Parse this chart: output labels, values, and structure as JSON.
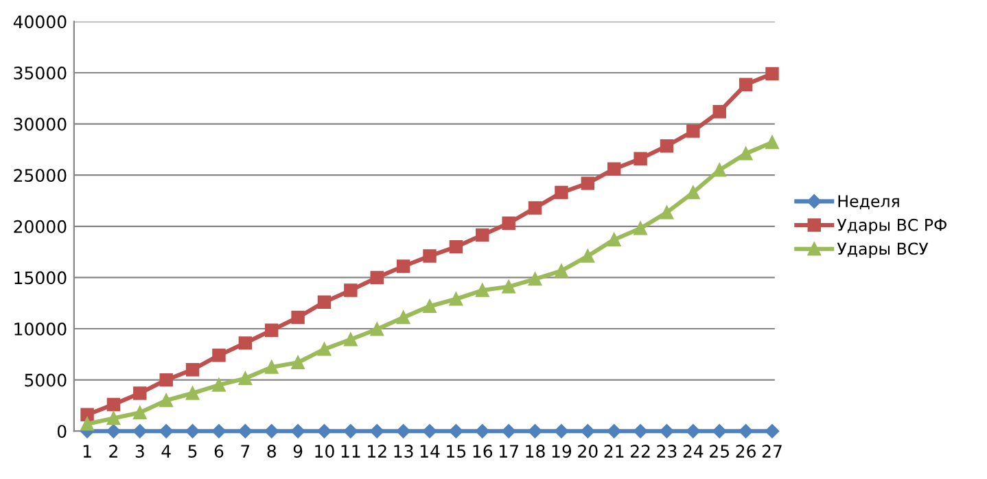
{
  "chart_data": {
    "type": "line",
    "categories": [
      "1",
      "2",
      "3",
      "4",
      "5",
      "6",
      "7",
      "8",
      "9",
      "10",
      "11",
      "12",
      "13",
      "14",
      "15",
      "16",
      "17",
      "18",
      "19",
      "20",
      "21",
      "22",
      "23",
      "24",
      "25",
      "26",
      "27"
    ],
    "series": [
      {
        "name": "Неделя",
        "color": "#4f81bd",
        "marker": "diamond",
        "values": [
          0,
          0,
          0,
          0,
          0,
          0,
          0,
          0,
          0,
          0,
          0,
          0,
          0,
          0,
          0,
          0,
          0,
          0,
          0,
          0,
          0,
          0,
          0,
          0,
          0,
          0,
          0
        ]
      },
      {
        "name": "Удары ВС РФ",
        "color": "#c0504d",
        "marker": "square",
        "values": [
          1600,
          2600,
          3700,
          5000,
          6000,
          7400,
          8600,
          9850,
          11100,
          12600,
          13750,
          15000,
          16100,
          17100,
          18000,
          19150,
          20300,
          21800,
          23300,
          24200,
          25600,
          26600,
          27850,
          29300,
          31200,
          33850,
          34900
        ]
      },
      {
        "name": "Удары ВСУ",
        "color": "#9bbb59",
        "marker": "triangle",
        "values": [
          700,
          1250,
          1800,
          3000,
          3700,
          4500,
          5150,
          6250,
          6700,
          8000,
          8950,
          9950,
          11100,
          12200,
          12900,
          13750,
          14100,
          14850,
          15650,
          17100,
          18700,
          19800,
          21350,
          23300,
          25500,
          27100,
          28200
        ]
      }
    ],
    "ylim": [
      0,
      40000
    ],
    "yticks": [
      0,
      5000,
      10000,
      15000,
      20000,
      25000,
      30000,
      35000,
      40000
    ],
    "grid": "y",
    "legend": "right",
    "line_style": "solid"
  }
}
